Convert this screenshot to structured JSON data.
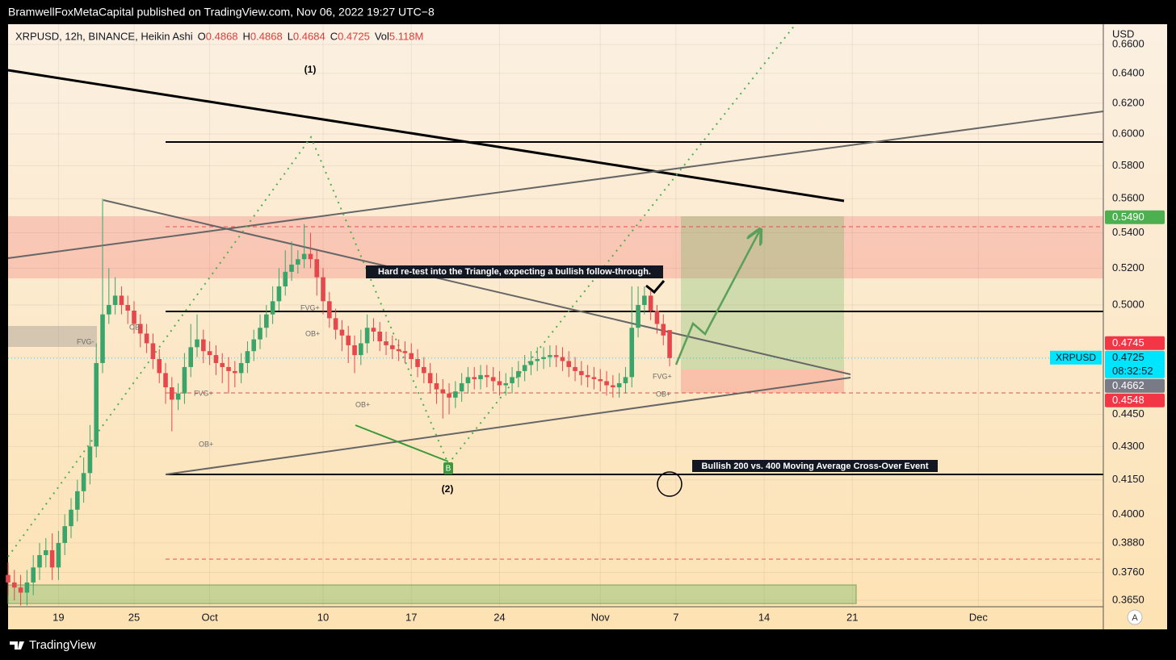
{
  "header": {
    "publisher": "BramwellFoxMetaCapital published on TradingView.com, Nov 06, 2022 19:27 UTC−8"
  },
  "footer": {
    "brand": "TradingView"
  },
  "chart_data": {
    "type": "candlestick",
    "symbol": "XRPUSD, 12h, BINANCE, Heikin Ashi",
    "legend": [
      {
        "label": "O",
        "value": 0.4868
      },
      {
        "label": "H",
        "value": 0.4868
      },
      {
        "label": "L",
        "value": 0.4684
      },
      {
        "label": "C",
        "value": 0.4725
      },
      {
        "label": "Vol",
        "value": "5.118M"
      }
    ],
    "currency": "USD",
    "log_scale": true,
    "grid": true,
    "up_color": "#3aa56a",
    "down_color": "#e5474c",
    "ylim": [
      0.3625,
      0.6744
    ],
    "yticks": [
      {
        "value": 0.365,
        "label": "0.3650"
      },
      {
        "value": 0.376,
        "label": "0.3760"
      },
      {
        "value": 0.388,
        "label": "0.3880"
      },
      {
        "value": 0.4,
        "label": "0.4000"
      },
      {
        "value": 0.415,
        "label": "0.4150"
      },
      {
        "value": 0.43,
        "label": "0.4300"
      },
      {
        "value": 0.445,
        "label": "0.4450"
      },
      {
        "value": 0.5,
        "label": "0.5000"
      },
      {
        "value": 0.52,
        "label": "0.5200"
      },
      {
        "value": 0.54,
        "label": "0.5400"
      },
      {
        "value": 0.56,
        "label": "0.5600"
      },
      {
        "value": 0.58,
        "label": "0.5800"
      },
      {
        "value": 0.6,
        "label": "0.6000"
      },
      {
        "value": 0.62,
        "label": "0.6200"
      },
      {
        "value": 0.64,
        "label": "0.6400"
      },
      {
        "value": 0.66,
        "label": "0.6600"
      }
    ],
    "xlim": [
      "2022-09-15 00:00",
      "2022-12-10 22:00"
    ],
    "xticks": [
      {
        "value": "2022-09-19 00:00",
        "label": "19"
      },
      {
        "value": "2022-09-25 00:00",
        "label": "25"
      },
      {
        "value": "2022-10-01 00:00",
        "label": "Oct"
      },
      {
        "value": "2022-10-10 00:00",
        "label": "10"
      },
      {
        "value": "2022-10-17 00:00",
        "label": "17"
      },
      {
        "value": "2022-10-24 00:00",
        "label": "24"
      },
      {
        "value": "2022-11-01 00:00",
        "label": "Nov"
      },
      {
        "value": "2022-11-07 00:00",
        "label": "7"
      },
      {
        "value": "2022-11-14 00:00",
        "label": "14"
      },
      {
        "value": "2022-11-21 00:00",
        "label": "21"
      },
      {
        "value": "2022-12-01 00:00",
        "label": "Dec"
      }
    ],
    "x": [
      "2022-09-15 00:00",
      "2022-09-15 12:00",
      "2022-09-16 00:00",
      "2022-09-16 12:00",
      "2022-09-17 00:00",
      "2022-09-17 12:00",
      "2022-09-18 00:00",
      "2022-09-18 12:00",
      "2022-09-19 00:00",
      "2022-09-19 12:00",
      "2022-09-20 00:00",
      "2022-09-20 12:00",
      "2022-09-21 00:00",
      "2022-09-21 12:00",
      "2022-09-22 00:00",
      "2022-09-22 12:00",
      "2022-09-23 00:00",
      "2022-09-23 12:00",
      "2022-09-24 00:00",
      "2022-09-24 12:00",
      "2022-09-25 00:00",
      "2022-09-25 12:00",
      "2022-09-26 00:00",
      "2022-09-26 12:00",
      "2022-09-27 00:00",
      "2022-09-27 12:00",
      "2022-09-28 00:00",
      "2022-09-28 12:00",
      "2022-09-29 00:00",
      "2022-09-29 12:00",
      "2022-09-30 00:00",
      "2022-09-30 12:00",
      "2022-10-01 00:00",
      "2022-10-01 12:00",
      "2022-10-02 00:00",
      "2022-10-02 12:00",
      "2022-10-03 00:00",
      "2022-10-03 12:00",
      "2022-10-04 00:00",
      "2022-10-04 12:00",
      "2022-10-05 00:00",
      "2022-10-05 12:00",
      "2022-10-06 00:00",
      "2022-10-06 12:00",
      "2022-10-07 00:00",
      "2022-10-07 12:00",
      "2022-10-08 00:00",
      "2022-10-08 12:00",
      "2022-10-09 00:00",
      "2022-10-09 12:00",
      "2022-10-10 00:00",
      "2022-10-10 12:00",
      "2022-10-11 00:00",
      "2022-10-11 12:00",
      "2022-10-12 00:00",
      "2022-10-12 12:00",
      "2022-10-13 00:00",
      "2022-10-13 12:00",
      "2022-10-14 00:00",
      "2022-10-14 12:00",
      "2022-10-15 00:00",
      "2022-10-15 12:00",
      "2022-10-16 00:00",
      "2022-10-16 12:00",
      "2022-10-17 00:00",
      "2022-10-17 12:00",
      "2022-10-18 00:00",
      "2022-10-18 12:00",
      "2022-10-19 00:00",
      "2022-10-19 12:00",
      "2022-10-20 00:00",
      "2022-10-20 12:00",
      "2022-10-21 00:00",
      "2022-10-21 12:00",
      "2022-10-22 00:00",
      "2022-10-22 12:00",
      "2022-10-23 00:00",
      "2022-10-23 12:00",
      "2022-10-24 00:00",
      "2022-10-24 12:00",
      "2022-10-25 00:00",
      "2022-10-25 12:00",
      "2022-10-26 00:00",
      "2022-10-26 12:00",
      "2022-10-27 00:00",
      "2022-10-27 12:00",
      "2022-10-28 00:00",
      "2022-10-28 12:00",
      "2022-10-29 00:00",
      "2022-10-29 12:00",
      "2022-10-30 00:00",
      "2022-10-30 12:00",
      "2022-10-31 00:00",
      "2022-10-31 12:00",
      "2022-11-01 00:00",
      "2022-11-01 12:00",
      "2022-11-02 00:00",
      "2022-11-02 12:00",
      "2022-11-03 00:00",
      "2022-11-03 12:00",
      "2022-11-04 00:00",
      "2022-11-04 12:00",
      "2022-11-05 00:00",
      "2022-11-05 12:00",
      "2022-11-06 00:00",
      "2022-11-06 12:00"
    ],
    "open": [
      0.375,
      0.372,
      0.37,
      0.368,
      0.372,
      0.378,
      0.383,
      0.385,
      0.378,
      0.388,
      0.395,
      0.402,
      0.41,
      0.418,
      0.43,
      0.47,
      0.495,
      0.5,
      0.505,
      0.5,
      0.497,
      0.49,
      0.485,
      0.48,
      0.472,
      0.465,
      0.458,
      0.452,
      0.455,
      0.468,
      0.478,
      0.482,
      0.476,
      0.474,
      0.47,
      0.468,
      0.466,
      0.465,
      0.47,
      0.476,
      0.482,
      0.488,
      0.495,
      0.502,
      0.51,
      0.518,
      0.522,
      0.525,
      0.528,
      0.525,
      0.515,
      0.502,
      0.493,
      0.487,
      0.484,
      0.479,
      0.474,
      0.48,
      0.488,
      0.486,
      0.481,
      0.479,
      0.477,
      0.476,
      0.475,
      0.472,
      0.468,
      0.465,
      0.46,
      0.457,
      0.455,
      0.453,
      0.456,
      0.46,
      0.463,
      0.462,
      0.464,
      0.463,
      0.461,
      0.459,
      0.46,
      0.463,
      0.466,
      0.469,
      0.471,
      0.472,
      0.473,
      0.474,
      0.473,
      0.471,
      0.468,
      0.466,
      0.464,
      0.463,
      0.462,
      0.461,
      0.459,
      0.458,
      0.46,
      0.463,
      0.488,
      0.5,
      0.505,
      0.497,
      0.49,
      0.4868
    ],
    "high": [
      0.38,
      0.377,
      0.375,
      0.377,
      0.383,
      0.388,
      0.39,
      0.392,
      0.393,
      0.4,
      0.407,
      0.415,
      0.425,
      0.44,
      0.48,
      0.56,
      0.52,
      0.515,
      0.51,
      0.505,
      0.502,
      0.495,
      0.49,
      0.485,
      0.477,
      0.47,
      0.463,
      0.46,
      0.475,
      0.49,
      0.495,
      0.487,
      0.481,
      0.479,
      0.475,
      0.473,
      0.471,
      0.475,
      0.481,
      0.487,
      0.495,
      0.5,
      0.51,
      0.52,
      0.53,
      0.535,
      0.53,
      0.545,
      0.54,
      0.53,
      0.52,
      0.507,
      0.498,
      0.492,
      0.489,
      0.484,
      0.487,
      0.495,
      0.493,
      0.491,
      0.486,
      0.484,
      0.482,
      0.481,
      0.48,
      0.477,
      0.473,
      0.47,
      0.465,
      0.462,
      0.46,
      0.461,
      0.465,
      0.468,
      0.468,
      0.469,
      0.469,
      0.468,
      0.466,
      0.465,
      0.468,
      0.471,
      0.474,
      0.476,
      0.478,
      0.478,
      0.479,
      0.479,
      0.478,
      0.476,
      0.473,
      0.471,
      0.469,
      0.468,
      0.467,
      0.466,
      0.464,
      0.465,
      0.468,
      0.51,
      0.51,
      0.51,
      0.508,
      0.5,
      0.495,
      0.4868
    ],
    "low": [
      0.367,
      0.365,
      0.363,
      0.363,
      0.367,
      0.373,
      0.378,
      0.373,
      0.373,
      0.383,
      0.39,
      0.397,
      0.405,
      0.413,
      0.425,
      0.465,
      0.49,
      0.495,
      0.495,
      0.49,
      0.485,
      0.478,
      0.475,
      0.467,
      0.46,
      0.45,
      0.437,
      0.447,
      0.45,
      0.463,
      0.473,
      0.47,
      0.469,
      0.464,
      0.46,
      0.455,
      0.458,
      0.46,
      0.465,
      0.471,
      0.477,
      0.483,
      0.49,
      0.497,
      0.505,
      0.513,
      0.517,
      0.52,
      0.52,
      0.505,
      0.495,
      0.488,
      0.482,
      0.476,
      0.47,
      0.465,
      0.469,
      0.475,
      0.481,
      0.476,
      0.474,
      0.472,
      0.471,
      0.47,
      0.467,
      0.463,
      0.46,
      0.455,
      0.45,
      0.443,
      0.445,
      0.448,
      0.451,
      0.455,
      0.457,
      0.457,
      0.458,
      0.456,
      0.454,
      0.454,
      0.455,
      0.458,
      0.461,
      0.464,
      0.466,
      0.467,
      0.468,
      0.468,
      0.466,
      0.463,
      0.461,
      0.459,
      0.458,
      0.457,
      0.456,
      0.454,
      0.453,
      0.453,
      0.455,
      0.458,
      0.483,
      0.495,
      0.492,
      0.485,
      0.479,
      0.4684
    ],
    "close": [
      0.372,
      0.37,
      0.368,
      0.372,
      0.378,
      0.383,
      0.385,
      0.378,
      0.388,
      0.395,
      0.402,
      0.41,
      0.418,
      0.43,
      0.47,
      0.495,
      0.5,
      0.505,
      0.5,
      0.497,
      0.49,
      0.485,
      0.48,
      0.472,
      0.465,
      0.458,
      0.452,
      0.455,
      0.468,
      0.478,
      0.482,
      0.476,
      0.474,
      0.47,
      0.468,
      0.466,
      0.465,
      0.47,
      0.476,
      0.482,
      0.488,
      0.495,
      0.502,
      0.51,
      0.518,
      0.522,
      0.525,
      0.528,
      0.525,
      0.515,
      0.502,
      0.493,
      0.487,
      0.484,
      0.479,
      0.474,
      0.48,
      0.488,
      0.486,
      0.481,
      0.479,
      0.477,
      0.476,
      0.475,
      0.472,
      0.468,
      0.465,
      0.46,
      0.457,
      0.455,
      0.453,
      0.456,
      0.46,
      0.463,
      0.462,
      0.464,
      0.463,
      0.461,
      0.459,
      0.46,
      0.463,
      0.466,
      0.469,
      0.471,
      0.472,
      0.473,
      0.474,
      0.473,
      0.471,
      0.468,
      0.466,
      0.464,
      0.463,
      0.462,
      0.461,
      0.459,
      0.458,
      0.46,
      0.463,
      0.488,
      0.5,
      0.505,
      0.497,
      0.49,
      0.484,
      0.4725
    ],
    "price_labels": [
      {
        "value": 0.549,
        "label": "0.5490",
        "color": "#4caf50"
      },
      {
        "value": 0.4745,
        "label": "0.4745",
        "color": "#f23645"
      },
      {
        "value": 0.4725,
        "label": "0.4725",
        "name": "XRPUSD",
        "countdown": "08:32:52",
        "color": "#00e5ff"
      },
      {
        "value": 0.4662,
        "label": "0.4662",
        "color": "#787b86"
      },
      {
        "value": 0.4548,
        "label": "0.4548",
        "color": "#f23645"
      }
    ],
    "annotations": [
      "(1)",
      "(2)",
      "Hard re-test into the Triangle, expecting a bullish follow-through.",
      "Bullish 200 vs. 400 Moving Average Cross-Over Event",
      "B"
    ],
    "zone_labels": [
      "FVG-",
      "OB-",
      "FVG+",
      "OB+",
      "FVG+",
      "OB+",
      "OB+",
      "FVG+",
      "OB+"
    ],
    "auto_scale": "A"
  }
}
